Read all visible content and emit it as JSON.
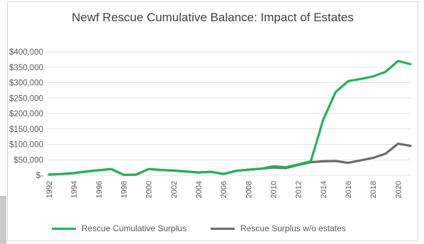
{
  "chart_data": {
    "type": "line",
    "title": "Newf Rescue Cumulative Balance: Impact of Estates",
    "xlabel": "",
    "ylabel": "",
    "ylim": [
      0,
      400000
    ],
    "y_tick_values": [
      0,
      50000,
      100000,
      150000,
      200000,
      250000,
      300000,
      350000,
      400000
    ],
    "y_tick_labels": [
      "$-",
      "$50,000",
      "$100,000",
      "$150,000",
      "$200,000",
      "$250,000",
      "$300,000",
      "$350,000",
      "$400,000"
    ],
    "x": [
      1992,
      1993,
      1994,
      1995,
      1996,
      1997,
      1998,
      1999,
      2000,
      2001,
      2002,
      2003,
      2004,
      2005,
      2006,
      2007,
      2008,
      2009,
      2010,
      2011,
      2012,
      2013,
      2014,
      2015,
      2016,
      2017,
      2018,
      2019,
      2020,
      2021
    ],
    "x_tick_labels": [
      "1992",
      "1994",
      "1996",
      "1998",
      "2000",
      "2002",
      "2004",
      "2006",
      "2008",
      "2010",
      "2012",
      "2014",
      "2016",
      "2018",
      "2020"
    ],
    "grid": true,
    "legend_position": "bottom",
    "series": [
      {
        "name": "Rescue Cumulative Surplus",
        "color": "#1fb45a",
        "values": [
          2000,
          4000,
          7000,
          12000,
          16000,
          20000,
          1000,
          2000,
          20000,
          17000,
          15000,
          12000,
          9000,
          11000,
          4000,
          14000,
          18000,
          21000,
          29000,
          26000,
          35000,
          45000,
          180000,
          270000,
          305000,
          312000,
          320000,
          335000,
          370000,
          360000
        ]
      },
      {
        "name": "Rescue Surplus w/o estates",
        "color": "#6b6b6b",
        "values": [
          2000,
          4000,
          7000,
          12000,
          16000,
          20000,
          1000,
          2000,
          20000,
          17000,
          15000,
          12000,
          9000,
          11000,
          4000,
          14000,
          18000,
          21000,
          25000,
          23000,
          33000,
          42000,
          45000,
          46000,
          40000,
          48000,
          56000,
          70000,
          102000,
          95000
        ]
      }
    ]
  }
}
